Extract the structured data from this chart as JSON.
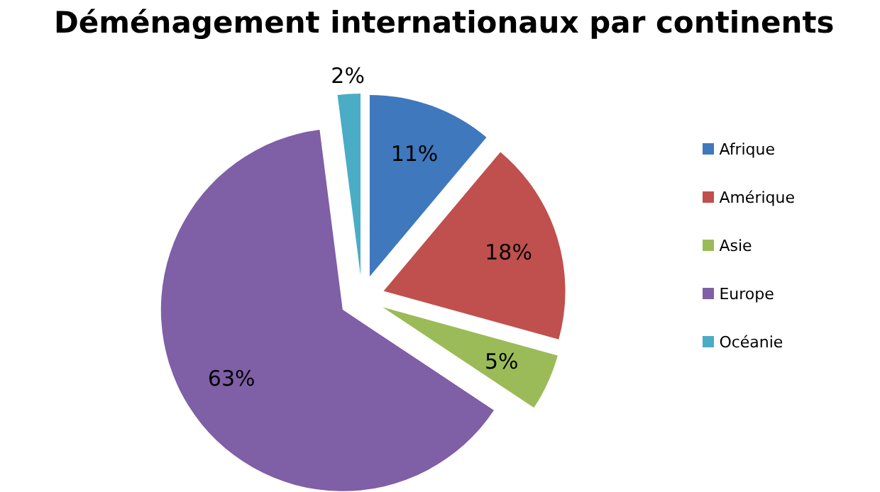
{
  "chart_data": {
    "type": "pie",
    "title": "Déménagement internationaux par continents",
    "categories": [
      "Afrique",
      "Amérique",
      "Asie",
      "Europe",
      "Océanie"
    ],
    "values": [
      11,
      18,
      5,
      63,
      2
    ],
    "value_labels": [
      "11%",
      "18%",
      "5%",
      "63%",
      "2%"
    ],
    "colors": [
      "#3f78bd",
      "#c0504d",
      "#9bbb59",
      "#7f5fa6",
      "#4bacc6"
    ],
    "legend": "right"
  }
}
